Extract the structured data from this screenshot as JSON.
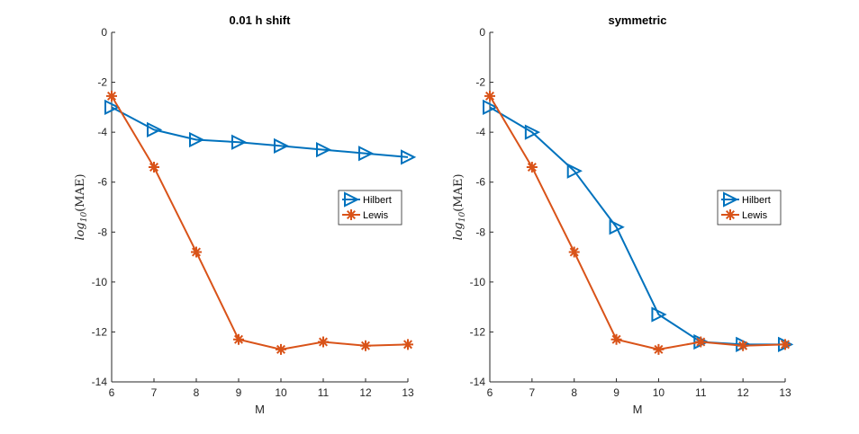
{
  "chart_data": [
    {
      "type": "line",
      "title": "0.01 h shift",
      "xlabel": "M",
      "ylabel": {
        "base": "log",
        "sub": "10",
        "arg": "(MAE)"
      },
      "xlim": [
        6,
        13
      ],
      "ylim": [
        -14,
        0
      ],
      "xticks": [
        6,
        7,
        8,
        9,
        10,
        11,
        12,
        13
      ],
      "yticks": [
        0,
        -2,
        -4,
        -6,
        -8,
        -10,
        -12,
        -14
      ],
      "legend": "right-center",
      "series": [
        {
          "name": "Hilbert",
          "color": "#0072BD",
          "marker": "triangle-right",
          "x": [
            6,
            7,
            8,
            9,
            10,
            11,
            12,
            13
          ],
          "y": [
            -3.0,
            -3.9,
            -4.3,
            -4.4,
            -4.55,
            -4.7,
            -4.85,
            -5.0
          ]
        },
        {
          "name": "Lewis",
          "color": "#D95319",
          "marker": "asterisk",
          "x": [
            6,
            7,
            8,
            9,
            10,
            11,
            12,
            13
          ],
          "y": [
            -2.55,
            -5.4,
            -8.8,
            -12.3,
            -12.7,
            -12.4,
            -12.55,
            -12.5
          ]
        }
      ]
    },
    {
      "type": "line",
      "title": "symmetric",
      "xlabel": "M",
      "ylabel": {
        "base": "log",
        "sub": "10",
        "arg": "(MAE)"
      },
      "xlim": [
        6,
        13
      ],
      "ylim": [
        -14,
        0
      ],
      "xticks": [
        6,
        7,
        8,
        9,
        10,
        11,
        12,
        13
      ],
      "yticks": [
        0,
        -2,
        -4,
        -6,
        -8,
        -10,
        -12,
        -14
      ],
      "legend": "right-center",
      "series": [
        {
          "name": "Hilbert",
          "color": "#0072BD",
          "marker": "triangle-right",
          "x": [
            6,
            7,
            8,
            9,
            10,
            11,
            12,
            13
          ],
          "y": [
            -3.0,
            -4.0,
            -5.55,
            -7.8,
            -11.3,
            -12.4,
            -12.5,
            -12.5
          ]
        },
        {
          "name": "Lewis",
          "color": "#D95319",
          "marker": "asterisk",
          "x": [
            6,
            7,
            8,
            9,
            10,
            11,
            12,
            13
          ],
          "y": [
            -2.55,
            -5.4,
            -8.8,
            -12.3,
            -12.7,
            -12.4,
            -12.55,
            -12.5
          ]
        }
      ]
    }
  ]
}
